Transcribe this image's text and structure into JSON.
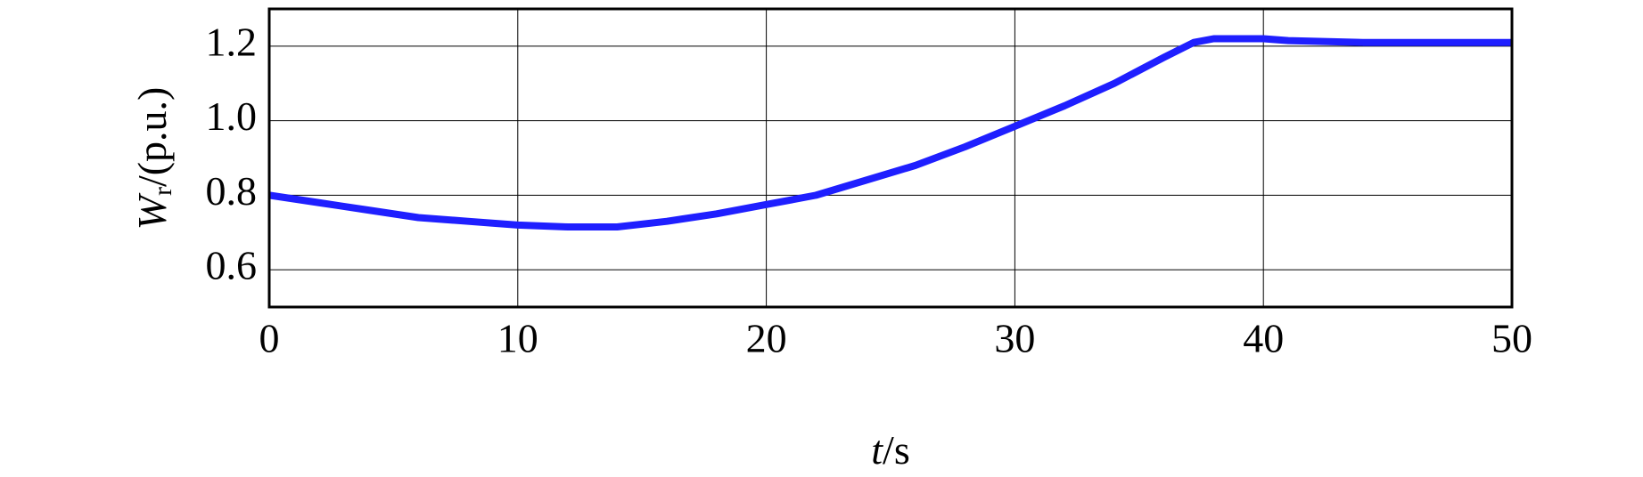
{
  "chart_data": {
    "type": "line",
    "ylabel": {
      "symbol": "W",
      "subscript": "r",
      "unit": "/(p.u.)"
    },
    "xlabel": {
      "symbol": "t",
      "unit": "/s"
    },
    "x": [
      0,
      2,
      4,
      6,
      8,
      10,
      12,
      14,
      16,
      18,
      20,
      22,
      24,
      26,
      28,
      30,
      32,
      34,
      36,
      37.2,
      38,
      40,
      41,
      44,
      50
    ],
    "series": [
      {
        "color": "#1f1fff",
        "values": [
          0.8,
          0.78,
          0.76,
          0.74,
          0.73,
          0.72,
          0.715,
          0.715,
          0.73,
          0.75,
          0.775,
          0.8,
          0.84,
          0.88,
          0.93,
          0.985,
          1.04,
          1.1,
          1.17,
          1.21,
          1.22,
          1.22,
          1.215,
          1.21,
          1.21
        ]
      }
    ],
    "xlim": [
      0,
      50
    ],
    "xticks": [
      0,
      10,
      20,
      30,
      40,
      50
    ],
    "ylim": [
      0.5,
      1.3
    ],
    "yticks": [
      0.6,
      0.8,
      {
        "value": 1.0,
        "label": "1.0"
      },
      1.2
    ],
    "grid": true
  }
}
